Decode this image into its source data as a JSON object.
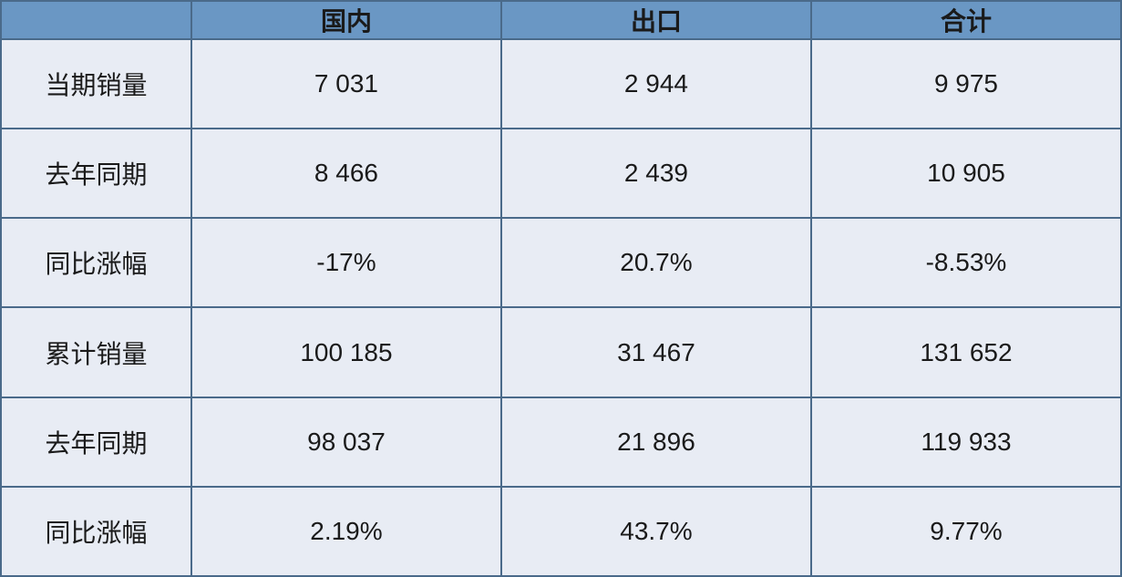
{
  "table": {
    "type": "table",
    "header_bg": "#6a97c4",
    "body_bg": "#e8ecf4",
    "header_text_color": "#1a1a1a",
    "body_text_color": "#1a1a1a",
    "border_color": "#4a6a8a",
    "border_width": 2,
    "font_size": 28,
    "header_font_weight": "bold",
    "columns": [
      "",
      "国内",
      "出口",
      "合计"
    ],
    "col_widths_pct": [
      17,
      27.66,
      27.66,
      27.66
    ],
    "rows": [
      {
        "label": "当期销量",
        "values": [
          "7 031",
          "2 944",
          "9 975"
        ]
      },
      {
        "label": "去年同期",
        "values": [
          "8 466",
          "2 439",
          "10 905"
        ]
      },
      {
        "label": "同比涨幅",
        "values": [
          "-17%",
          "20.7%",
          "-8.53%"
        ]
      },
      {
        "label": "累计销量",
        "values": [
          "100 185",
          "31 467",
          "131 652"
        ]
      },
      {
        "label": "去年同期",
        "values": [
          "98 037",
          "21 896",
          "119 933"
        ]
      },
      {
        "label": "同比涨幅",
        "values": [
          "2.19%",
          "43.7%",
          "9.77%"
        ]
      }
    ]
  }
}
